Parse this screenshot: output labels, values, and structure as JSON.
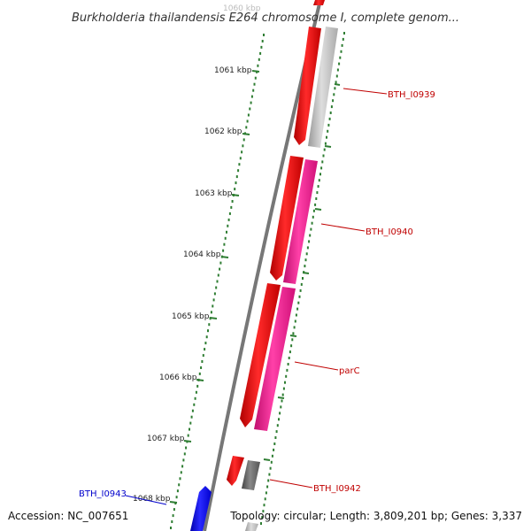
{
  "title": "Burkholderia thailandensis E264 chromosome I, complete genom...",
  "footer": {
    "accession": "Accession: NC_007651",
    "topology": "Topology: circular; Length: 3,809,201 bp; Genes: 3,337"
  },
  "scale": {
    "faded_top_label": "1060 kbp",
    "ticks": [
      {
        "label": "1061 kbp"
      },
      {
        "label": "1062 kbp"
      },
      {
        "label": "1063 kbp"
      },
      {
        "label": "1064 kbp"
      },
      {
        "label": "1065 kbp"
      },
      {
        "label": "1066 kbp"
      },
      {
        "label": "1067 kbp"
      },
      {
        "label": "1068 kbp"
      }
    ]
  },
  "genes": [
    {
      "label": "BTH_I0939",
      "color": "#c00000"
    },
    {
      "label": "BTH_I0940",
      "color": "#c00000"
    },
    {
      "label": "parC",
      "color": "#c00000"
    },
    {
      "label": "BTH_I0942",
      "color": "#c00000"
    },
    {
      "label": "BTH_I0943",
      "color": "#0000cc"
    }
  ],
  "colors": {
    "forward_strand": "#ff0000",
    "cog_magenta": "#ff1493",
    "cog_gray": "#bbbbbb",
    "cog_dark_gray": "#666666",
    "reverse_strand": "#0000ff",
    "backbone": "#777777",
    "ticks": "#2e7d32"
  }
}
